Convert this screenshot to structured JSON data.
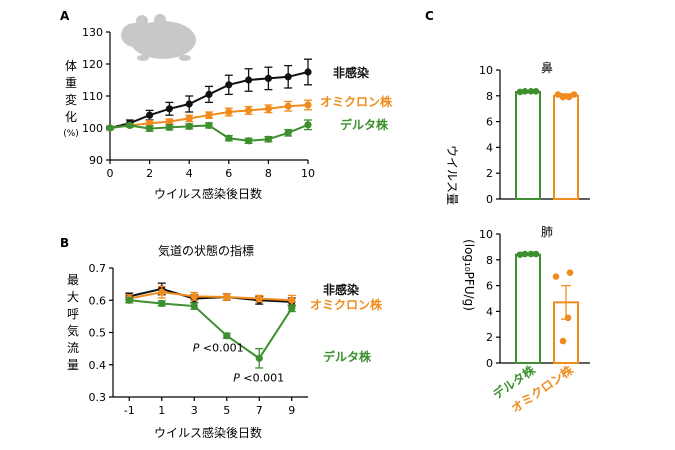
{
  "colors": {
    "black": "#111111",
    "orange": "#f08c1e",
    "green": "#3d8f2f"
  },
  "chart_data": [
    {
      "panel": "A",
      "type": "line",
      "ylabel_chars": [
        "体",
        "重",
        "変",
        "化"
      ],
      "ylabel_unit": "(%)",
      "xlabel": "ウイルス感染後日数",
      "xlim": [
        0,
        10
      ],
      "ylim": [
        90,
        130
      ],
      "xticks": [
        0,
        2,
        4,
        6,
        8,
        10
      ],
      "yticks": [
        90,
        100,
        110,
        120,
        130
      ],
      "icon": "hamster-icon",
      "series": [
        {
          "name": "非感染",
          "color": "#111111",
          "x": [
            0,
            1,
            2,
            3,
            4,
            5,
            6,
            7,
            8,
            9,
            10
          ],
          "y": [
            100,
            101.5,
            104,
            106,
            107.5,
            110.5,
            113.5,
            115,
            115.5,
            116,
            117.5
          ],
          "err": [
            0.5,
            1,
            1.5,
            2,
            2.5,
            2.5,
            3,
            3.5,
            3.5,
            3.5,
            4
          ]
        },
        {
          "name": "オミクロン株",
          "color": "#f08c1e",
          "x": [
            0,
            1,
            2,
            3,
            4,
            5,
            6,
            7,
            8,
            9,
            10
          ],
          "y": [
            100,
            100.8,
            101.5,
            102,
            103,
            104,
            105,
            105.5,
            106,
            106.8,
            107.2
          ],
          "err": [
            0.5,
            0.5,
            0.8,
            0.8,
            1,
            1,
            1.2,
            1.2,
            1.2,
            1.5,
            1.5
          ]
        },
        {
          "name": "デルタ株",
          "color": "#3d8f2f",
          "x": [
            0,
            1,
            2,
            3,
            4,
            5,
            6,
            7,
            8,
            9,
            10
          ],
          "y": [
            100,
            100.8,
            99.8,
            100.2,
            100.5,
            100.8,
            96.8,
            96,
            96.5,
            98.5,
            101
          ],
          "err": [
            0.4,
            0.5,
            0.8,
            0.8,
            0.8,
            0.8,
            0.8,
            0.8,
            0.8,
            1,
            1.5
          ]
        }
      ]
    },
    {
      "panel": "B",
      "type": "line",
      "title": "気道の状態の指標",
      "ylabel_chars": [
        "最",
        "大",
        "呼",
        "気",
        "流",
        "量"
      ],
      "xlabel": "ウイルス感染後日数",
      "xlim": [
        -2,
        10
      ],
      "ylim": [
        0.3,
        0.7
      ],
      "xticks": [
        -1,
        1,
        3,
        5,
        7,
        9
      ],
      "yticks": [
        0.3,
        0.4,
        0.5,
        0.6,
        0.7
      ],
      "annotations": [
        {
          "text": "P <0.001",
          "x": 5,
          "y": 0.49
        },
        {
          "text": "P <0.001",
          "x": 7,
          "y": 0.42
        }
      ],
      "series": [
        {
          "name": "非感染",
          "color": "#111111",
          "x": [
            -1,
            1,
            3,
            5,
            7,
            9
          ],
          "y": [
            0.612,
            0.635,
            0.605,
            0.61,
            0.6,
            0.595
          ],
          "err": [
            0.01,
            0.018,
            0.012,
            0.01,
            0.012,
            0.012
          ]
        },
        {
          "name": "オミクロン株",
          "color": "#f08c1e",
          "x": [
            -1,
            1,
            3,
            5,
            7,
            9
          ],
          "y": [
            0.605,
            0.625,
            0.612,
            0.61,
            0.605,
            0.6
          ],
          "err": [
            0.012,
            0.018,
            0.012,
            0.01,
            0.01,
            0.015
          ]
        },
        {
          "name": "デルタ株",
          "color": "#3d8f2f",
          "x": [
            -1,
            1,
            3,
            5,
            7,
            9
          ],
          "y": [
            0.6,
            0.59,
            0.582,
            0.49,
            0.42,
            0.575
          ],
          "err": [
            0.008,
            0.008,
            0.01,
            0.008,
            0.03,
            0.01
          ]
        }
      ]
    },
    {
      "panel": "C",
      "type": "bar",
      "ylabel": "ウイルス量",
      "ylabel_unit": "(log₁₀PFU/g)",
      "categories": [
        "デルタ株",
        "オミクロン株"
      ],
      "category_colors": [
        "#3d8f2f",
        "#f08c1e"
      ],
      "subplots": [
        {
          "title": "鼻",
          "ylim": [
            0,
            10
          ],
          "yticks": [
            0,
            2,
            4,
            6,
            8,
            10
          ],
          "values": [
            8.3,
            8.0
          ],
          "err": [
            0.05,
            0.15
          ],
          "points": [
            [
              8.3,
              8.35,
              8.35,
              8.35
            ],
            [
              8.1,
              7.9,
              7.9,
              8.1
            ]
          ]
        },
        {
          "title": "肺",
          "ylim": [
            0,
            10
          ],
          "yticks": [
            0,
            2,
            4,
            6,
            8,
            10
          ],
          "values": [
            8.4,
            4.7
          ],
          "err": [
            0.05,
            1.3
          ],
          "points": [
            [
              8.4,
              8.45,
              8.45,
              8.45
            ],
            [
              7.0,
              6.7,
              3.5,
              1.7
            ]
          ]
        }
      ]
    }
  ]
}
